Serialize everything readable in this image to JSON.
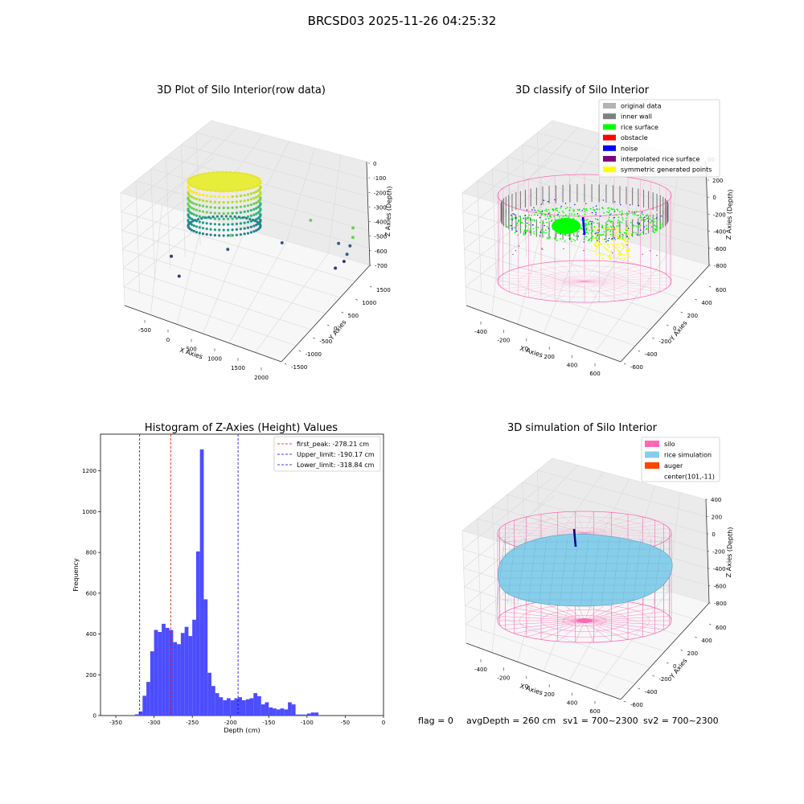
{
  "suptitle": "BRCSD03 2025-11-26 04:25:32",
  "footer": {
    "flag": "flag = 0",
    "avg_depth": "avgDepth = 260 cm",
    "sv1": "sv1 = 700~2300",
    "sv2": "sv2 = 700~2300"
  },
  "chart_data": [
    {
      "type": "scatter",
      "title": "3D Plot of Silo Interior(row data)",
      "xlabel": "X Axies",
      "ylabel": "Y Axies",
      "zlabel": "Z Axies (Depth)",
      "x_ticks": [
        "-500",
        "0",
        "500",
        "1000",
        "1500",
        "2000"
      ],
      "y_ticks": [
        "-1500",
        "-1000",
        "-500",
        "0",
        "500",
        "1000",
        "1500"
      ],
      "z_ticks": [
        "0",
        "-100",
        "-200",
        "-300",
        "-400",
        "-500",
        "-600",
        "-700"
      ],
      "colormap": "viridis",
      "ring_color": "#bfe04a",
      "outliers": [
        {
          "x": -550,
          "y": -200,
          "z": -720
        },
        {
          "x": -200,
          "y": -600,
          "z": -720
        },
        {
          "x": 250,
          "y": 300,
          "z": -560
        },
        {
          "x": 300,
          "y": 100,
          "z": -610
        },
        {
          "x": 900,
          "y": 800,
          "z": -640
        },
        {
          "x": 1200,
          "y": 1200,
          "z": -520
        },
        {
          "x": 1800,
          "y": 1500,
          "z": -560
        },
        {
          "x": 1850,
          "y": 1400,
          "z": -600
        },
        {
          "x": 1850,
          "y": 1300,
          "z": -640
        },
        {
          "x": 1850,
          "y": 1200,
          "z": -680
        },
        {
          "x": 1850,
          "y": 1100,
          "z": -710
        },
        {
          "x": 1800,
          "y": 900,
          "z": -720
        },
        {
          "x": 1700,
          "y": 1200,
          "z": -620
        }
      ]
    },
    {
      "type": "scatter",
      "title": "3D classify of Silo Interior",
      "xlabel": "X Axies",
      "ylabel": "Y Axies",
      "zlabel": "Z Axies (Depth)",
      "x_ticks": [
        "-400",
        "-200",
        "0",
        "200",
        "400",
        "600"
      ],
      "y_ticks": [
        "-600",
        "-400",
        "-200",
        "0",
        "200",
        "400",
        "600"
      ],
      "z_ticks": [
        "200",
        "0",
        "-200",
        "-400",
        "-600",
        "-800"
      ],
      "z_top_partial": "00",
      "legend_position": "top-right",
      "legend": [
        {
          "label": "original data",
          "color": "#b3b3b3"
        },
        {
          "label": "inner wall",
          "color": "#808080"
        },
        {
          "label": "rice surface",
          "color": "#00ff00"
        },
        {
          "label": "obstacle",
          "color": "#ff0000"
        },
        {
          "label": "noise",
          "color": "#0000ff"
        },
        {
          "label": "interpolated rice surface",
          "color": "#800080"
        },
        {
          "label": "symmetric generated points",
          "color": "#ffff00"
        }
      ],
      "silo_color": "#ff69b4"
    },
    {
      "type": "bar",
      "title": "Histogram of Z-Axies (Height) Values",
      "xlabel": "Depth (cm)",
      "ylabel": "Frequency",
      "xlim": [
        -370,
        0
      ],
      "ylim": [
        0,
        1380
      ],
      "x_ticks": [
        -350,
        -300,
        -250,
        -200,
        -150,
        -100,
        -50,
        0
      ],
      "y_ticks": [
        0,
        200,
        400,
        600,
        800,
        1000,
        1200
      ],
      "bar_color": "#4d4dff",
      "bin_start": -325,
      "bin_width": 5,
      "values": [
        6,
        20,
        97,
        165,
        315,
        420,
        410,
        450,
        430,
        420,
        360,
        350,
        405,
        435,
        390,
        470,
        805,
        1305,
        570,
        210,
        145,
        110,
        90,
        75,
        85,
        75,
        85,
        90,
        75,
        80,
        85,
        110,
        95,
        55,
        65,
        40,
        35,
        30,
        35,
        30,
        65,
        55,
        5,
        5,
        5,
        10,
        15,
        15
      ],
      "vlines": [
        {
          "label": "first_peak: -278.21 cm",
          "value": -278.21,
          "color": "#ff0000"
        },
        {
          "label": "Upper_limit: -190.17 cm",
          "value": -190.17,
          "color": "#0000ff"
        },
        {
          "label": "Lower_limit: -318.84 cm",
          "value": -318.84,
          "color": "#0000ff"
        }
      ],
      "legend_position": "top-right"
    },
    {
      "type": "surface",
      "title": "3D simulation of Silo Interior",
      "xlabel": "X Axies",
      "ylabel": "Y Axies",
      "zlabel": "Z Axies (Depth)",
      "x_ticks": [
        "-400",
        "-200",
        "0",
        "200",
        "400",
        "600"
      ],
      "y_ticks": [
        "-600",
        "-400",
        "-200",
        "0",
        "200",
        "400",
        "600"
      ],
      "z_ticks": [
        "400",
        "200",
        "0",
        "-200",
        "-400",
        "-600",
        "-800"
      ],
      "legend_position": "top-right",
      "legend": [
        {
          "label": "silo",
          "color": "#ff69b4"
        },
        {
          "label": "rice simulation",
          "color": "#87ceeb"
        },
        {
          "label": "auger",
          "color": "#ff4500"
        },
        {
          "label": "center(101,-11)",
          "color": ""
        }
      ]
    }
  ]
}
